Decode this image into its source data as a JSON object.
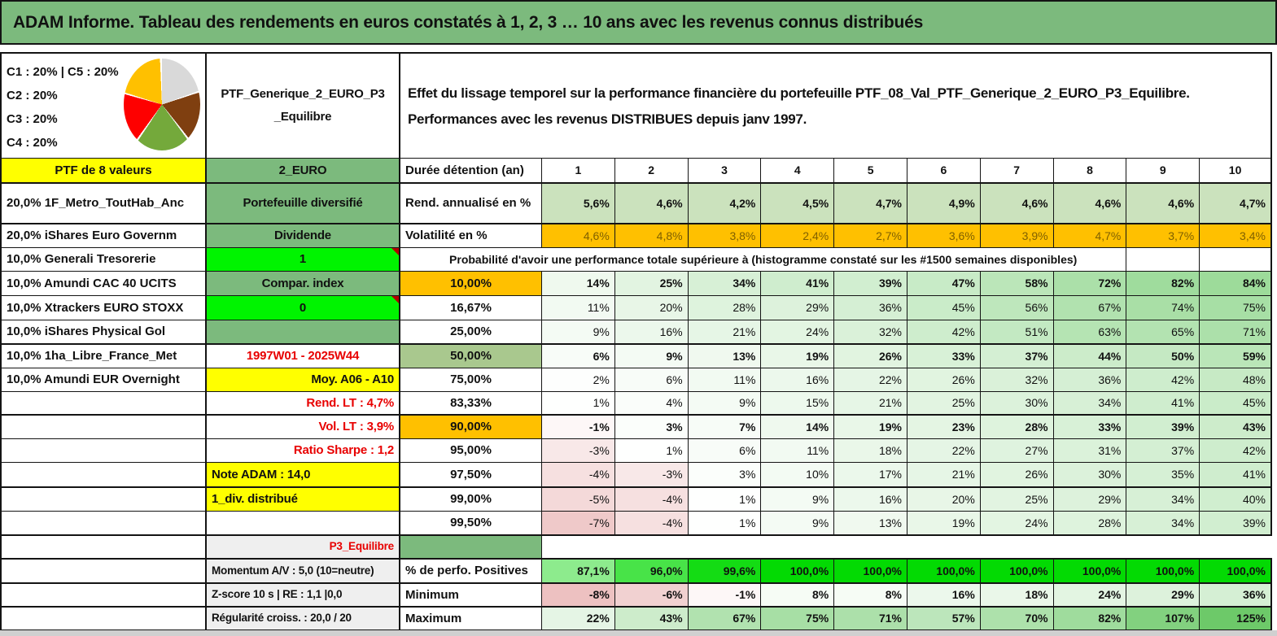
{
  "title": "ADAM Informe. Tableau des rendements en euros constatés à 1, 2, 3 … 10 ans avec les revenus connus distribués",
  "header": {
    "allocations": [
      "C1 : 20% | C5 : 20%",
      "C2 : 20%",
      "C3 : 20%",
      "C4 : 20%"
    ],
    "pie": {
      "slices": [
        {
          "label": "C5",
          "value": "20%",
          "color": "#d9d9d9"
        },
        {
          "label": "C4",
          "value": "20%",
          "color": "#7f3f10"
        },
        {
          "label": "C3",
          "value": "20%",
          "color": "#74a93b"
        },
        {
          "label": "C2",
          "value": "20%",
          "color": "#fe0000"
        },
        {
          "label": "C1",
          "value": "20%",
          "color": "#ffc000"
        }
      ]
    },
    "portfolio_name": "PTF_Generique_2_EURO_P3 _Equilibre",
    "description_line1": "Effet du lissage temporel sur la performance financière du portefeuille PTF_08_Val_PTF_Generique_2_EURO_P3_Equilibre.",
    "description_line2": "Performances avec les revenus DISTRIBUES depuis janv 1997."
  },
  "colors": {
    "green": "#7cba7d",
    "green_light": "#cbe2bd",
    "orange": "#ffc000",
    "yellow": "#ffff00",
    "bright_green": "#00f400",
    "olive": "#a9c88e",
    "gray_cell": "#efefef",
    "red_text": "#e80000",
    "vol_value_text": "#7f6000",
    "scale_green_max": "#6dc969",
    "scale_pink_max": "#e8b2b2",
    "perfo_cell_colors": [
      "#8deb8d",
      "#48e348",
      "#14dc14",
      "#03da03",
      "#03da03",
      "#03da03",
      "#03da03",
      "#03da03",
      "#03da03",
      "#03da03"
    ],
    "window_edge": "#d0d0d0"
  },
  "grid": {
    "rows": [
      {
        "name": "ptf-header",
        "a": "PTF de 8 valeurs",
        "aCls": "yellow center",
        "b": "2_EURO",
        "bCls": "green center",
        "c": "Durée détention (an)",
        "cells": [
          "1",
          "2",
          "3",
          "4",
          "5",
          "6",
          "7",
          "8",
          "9",
          "10"
        ],
        "vMode": "plain",
        "vAlign": "center",
        "vBold": true
      },
      {
        "name": "rend",
        "a": "20,0% 1F_Metro_ToutHab_Anc",
        "b": "Portefeuille diversifié",
        "bCls": "green center",
        "c": "Rend. annualisé en %",
        "cells": [
          "5,6%",
          "4,6%",
          "4,2%",
          "4,5%",
          "4,7%",
          "4,9%",
          "4,6%",
          "4,6%",
          "4,6%",
          "4,7%"
        ],
        "vMode": "flat",
        "vBold": true,
        "thick": true
      },
      {
        "name": "vol",
        "a": "20,0% iShares Euro Governm",
        "b": "Dividende",
        "bCls": "green center",
        "c": "Volatilité en %",
        "cells": [
          "4,6%",
          "4,8%",
          "3,8%",
          "2,4%",
          "2,7%",
          "3,6%",
          "3,9%",
          "4,7%",
          "3,7%",
          "3,4%"
        ],
        "vMode": "orange",
        "thick": true
      },
      {
        "name": "proba-header",
        "a": "10,0% Generali Tresorerie",
        "b": "1",
        "bCls": "bright center corner",
        "span": "Probabilité d'avoir une performance totale supérieure à (histogramme constaté sur les #1500 semaines disponibles)"
      },
      {
        "name": "p10",
        "a": "10,0% Amundi CAC 40 UCITS",
        "b": "Compar. index",
        "bCls": "green center",
        "c": "10,00%",
        "cCls": "orange center",
        "cells": [
          "14%",
          "25%",
          "34%",
          "41%",
          "39%",
          "47%",
          "58%",
          "72%",
          "82%",
          "84%"
        ],
        "vMode": "scale",
        "vBold": true
      },
      {
        "name": "p16",
        "a": "10,0% Xtrackers EURO STOXX",
        "b": "0",
        "bCls": "bright center corner",
        "c": "16,67%",
        "cCls": "center",
        "cells": [
          "11%",
          "20%",
          "28%",
          "29%",
          "36%",
          "45%",
          "56%",
          "67%",
          "74%",
          "75%"
        ],
        "vMode": "scale"
      },
      {
        "name": "p25",
        "a": "10,0% iShares Physical Gol",
        "b": "",
        "bCls": "green",
        "c": "25,00%",
        "cCls": "center",
        "cells": [
          "9%",
          "16%",
          "21%",
          "24%",
          "32%",
          "42%",
          "51%",
          "63%",
          "65%",
          "71%"
        ],
        "vMode": "scale"
      },
      {
        "name": "p50",
        "a": "10,0% 1ha_Libre_France_Met",
        "b": "1997W01 - 2025W44",
        "bCls": "redtext center",
        "c": "50,00%",
        "cCls": "olive center big",
        "cells": [
          "6%",
          "9%",
          "13%",
          "19%",
          "26%",
          "33%",
          "37%",
          "44%",
          "50%",
          "59%"
        ],
        "vMode": "scale",
        "vBold": true,
        "thick": true
      },
      {
        "name": "p75",
        "a": "10,0% Amundi EUR Overnight",
        "b": "Moy. A06 - A10",
        "bCls": "yellow right",
        "c": "75,00%",
        "cCls": "center",
        "cells": [
          "2%",
          "6%",
          "11%",
          "16%",
          "22%",
          "26%",
          "32%",
          "36%",
          "42%",
          "48%"
        ],
        "vMode": "scale"
      },
      {
        "name": "p83",
        "a": "",
        "b": "Rend. LT : 4,7%",
        "bCls": "redtext right",
        "c": "83,33%",
        "cCls": "center",
        "cells": [
          "1%",
          "4%",
          "9%",
          "15%",
          "21%",
          "25%",
          "30%",
          "34%",
          "41%",
          "45%"
        ],
        "vMode": "scale"
      },
      {
        "name": "p90",
        "a": "",
        "b": "Vol. LT : 3,9%",
        "bCls": "redtext right",
        "c": "90,00%",
        "cCls": "orange center",
        "cells": [
          "-1%",
          "3%",
          "7%",
          "14%",
          "19%",
          "23%",
          "28%",
          "33%",
          "39%",
          "43%"
        ],
        "vMode": "scale",
        "vBold": true,
        "thick": true
      },
      {
        "name": "p95",
        "a": "",
        "b": "Ratio Sharpe : 1,2",
        "bCls": "redtext right",
        "c": "95,00%",
        "cCls": "center",
        "cells": [
          "-3%",
          "1%",
          "6%",
          "11%",
          "18%",
          "22%",
          "27%",
          "31%",
          "37%",
          "42%"
        ],
        "vMode": "scale"
      },
      {
        "name": "p97",
        "a": "",
        "b": "Note ADAM : 14,0",
        "bCls": "yellow left",
        "c": "97,50%",
        "cCls": "center",
        "cells": [
          "-4%",
          "-3%",
          "3%",
          "10%",
          "17%",
          "21%",
          "26%",
          "30%",
          "35%",
          "41%"
        ],
        "vMode": "scale"
      },
      {
        "name": "p99",
        "a": "",
        "b": "1_div. distribué",
        "bCls": "yellow left",
        "c": "99,00%",
        "cCls": "center",
        "cells": [
          "-5%",
          "-4%",
          "1%",
          "9%",
          "16%",
          "20%",
          "25%",
          "29%",
          "34%",
          "40%"
        ],
        "vMode": "scale",
        "thick": true
      },
      {
        "name": "p995",
        "a": "",
        "b": "",
        "c": "99,50%",
        "cCls": "center",
        "cells": [
          "-7%",
          "-4%",
          "1%",
          "9%",
          "13%",
          "19%",
          "24%",
          "28%",
          "34%",
          "39%"
        ],
        "vMode": "scale"
      },
      {
        "name": "p3row",
        "a": "",
        "b": "P3_Equilibre",
        "bCls": "gray redtext right",
        "c": "",
        "cCls": "greenbg",
        "free": true,
        "thick": true
      },
      {
        "name": "perfo",
        "a": "",
        "b": "Momentum A/V : 5,0 (10=neutre)",
        "bCls": "gray left",
        "c": "% de perfo. Positives",
        "cells": [
          "87,1%",
          "96,0%",
          "99,6%",
          "100,0%",
          "100,0%",
          "100,0%",
          "100,0%",
          "100,0%",
          "100,0%",
          "100,0%"
        ],
        "vMode": "perfo",
        "vBold": true,
        "thick": true
      },
      {
        "name": "min",
        "a": "",
        "b": "Z-score 10 s | RE : 1,1 |0,0",
        "bCls": "gray left",
        "c": "Minimum",
        "cells": [
          "-8%",
          "-6%",
          "-1%",
          "8%",
          "8%",
          "16%",
          "18%",
          "24%",
          "29%",
          "36%"
        ],
        "vMode": "scale",
        "vBold": true,
        "thick": true
      },
      {
        "name": "max",
        "a": "",
        "b": "Régularité croiss. : 20,0 / 20",
        "bCls": "gray left",
        "c": "Maximum",
        "cells": [
          "22%",
          "43%",
          "67%",
          "75%",
          "71%",
          "57%",
          "70%",
          "82%",
          "107%",
          "125%"
        ],
        "vMode": "scale",
        "vBold": true,
        "thick": true
      }
    ]
  }
}
